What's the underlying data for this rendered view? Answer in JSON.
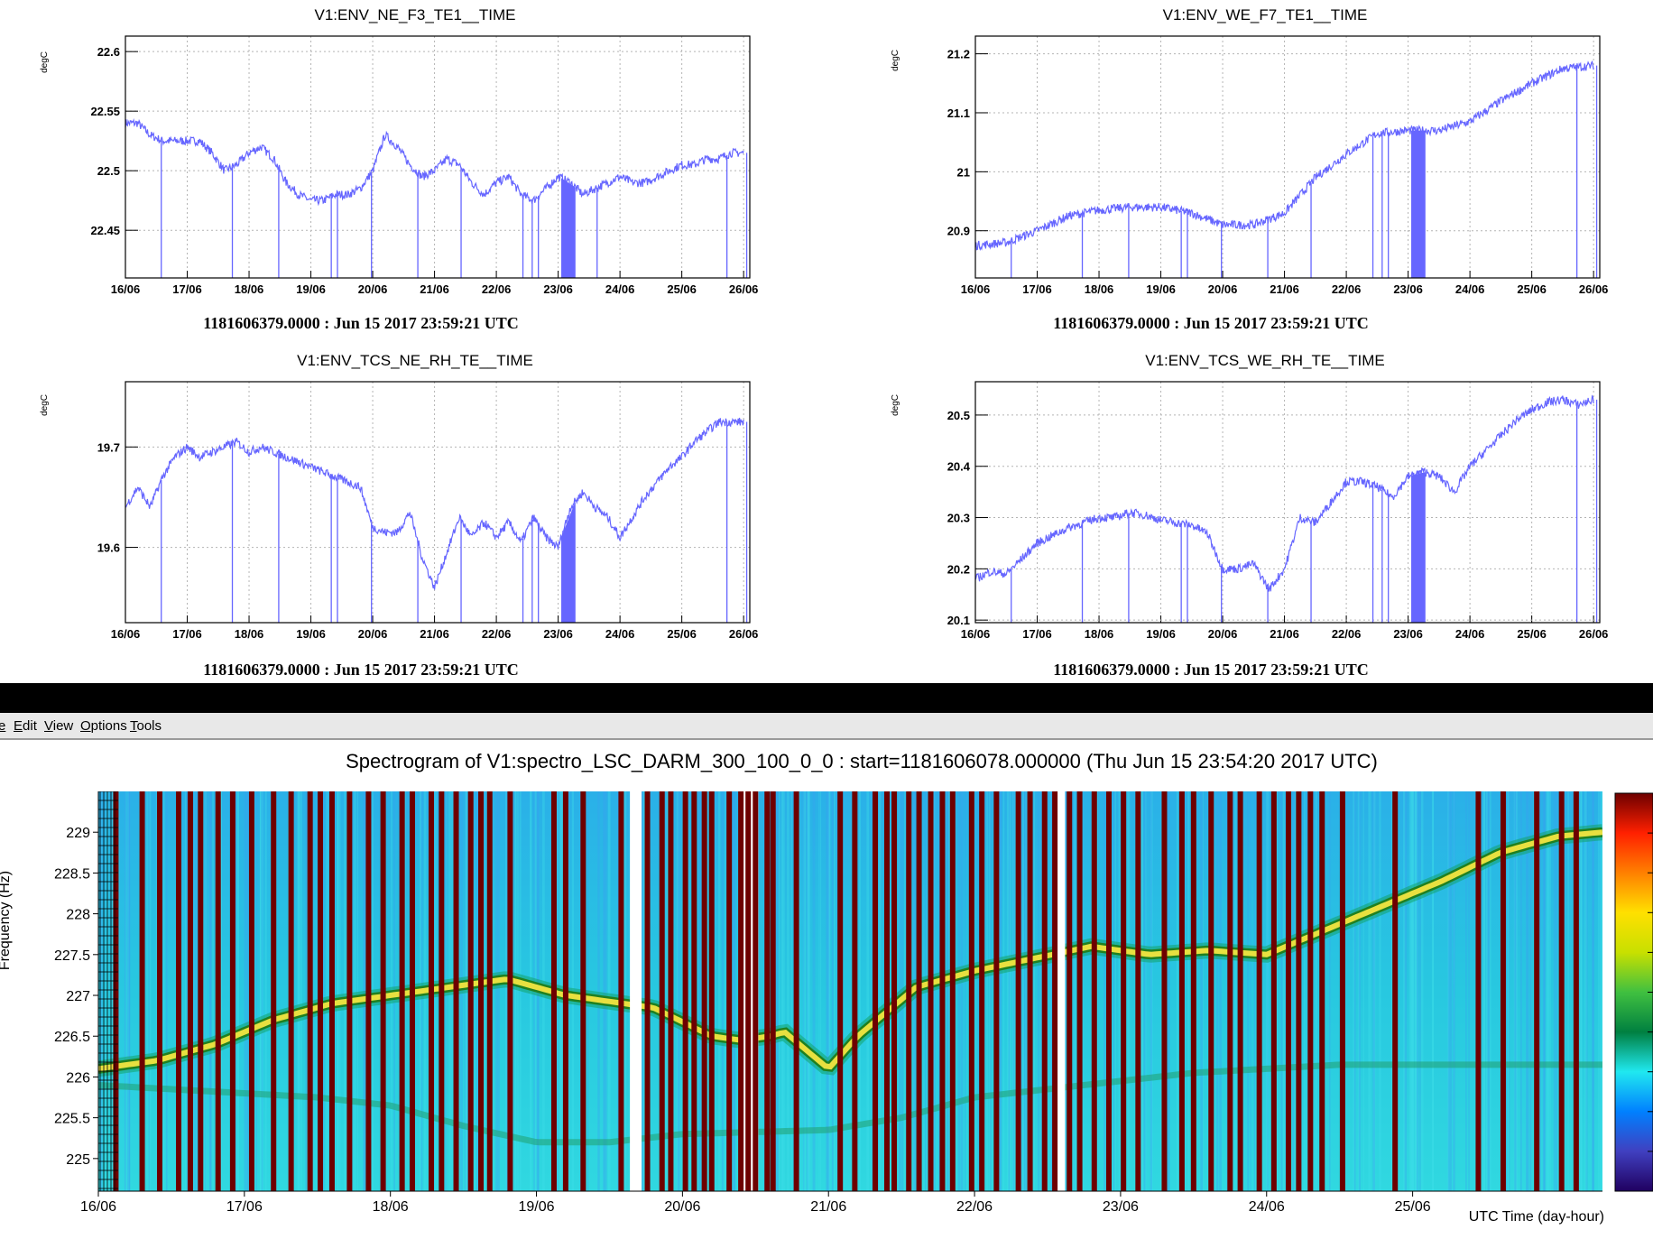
{
  "colors": {
    "trace": "#6666ff",
    "menu_bg": "#e8e8e8",
    "spectro_bg": "#28c8e0",
    "spectro_line": "#e8e040",
    "spectro_gap": "#6e0000"
  },
  "env_plots": [
    {
      "title": "V1:ENV_NE_F3_TE1__TIME",
      "unit": "degC",
      "footer": "1181606379.0000 : Jun 15 2017 23:59:21 UTC",
      "chart_data": {
        "type": "line",
        "title": "V1:ENV_NE_F3_TE1__TIME",
        "ylabel": "degC",
        "x_ticks": [
          "16/06",
          "17/06",
          "18/06",
          "19/06",
          "20/06",
          "21/06",
          "22/06",
          "23/06",
          "24/06",
          "25/06",
          "26/06"
        ],
        "y_ticks": [
          "22.45",
          "22.5",
          "22.55",
          "22.6"
        ],
        "xlim": [
          0,
          10.1
        ],
        "ylim": [
          22.41,
          22.613
        ],
        "series": [
          {
            "x": [
              0,
              0.2,
              0.4,
              0.6,
              0.8,
              1.0,
              1.2,
              1.4,
              1.6,
              1.8,
              2.0,
              2.2,
              2.4,
              2.6,
              2.8,
              3.0,
              3.2,
              3.4,
              3.6,
              3.8,
              4.0,
              4.2,
              4.4,
              4.6,
              4.8,
              5.0,
              5.2,
              5.4,
              5.6,
              5.8,
              6.0,
              6.2,
              6.4,
              6.6,
              6.8,
              7.0,
              7.2,
              7.4,
              7.6,
              7.8,
              8.0,
              8.2,
              8.4,
              8.6,
              8.8,
              9.0,
              9.2,
              9.4,
              9.6,
              9.8,
              10.0
            ],
            "y": [
              22.54,
              22.54,
              22.53,
              22.525,
              22.525,
              22.525,
              22.525,
              22.515,
              22.5,
              22.505,
              22.515,
              22.52,
              22.51,
              22.49,
              22.48,
              22.475,
              22.475,
              22.48,
              22.48,
              22.485,
              22.5,
              22.53,
              22.52,
              22.505,
              22.495,
              22.5,
              22.51,
              22.505,
              22.49,
              22.48,
              22.49,
              22.495,
              22.48,
              22.475,
              22.485,
              22.495,
              22.49,
              22.48,
              22.485,
              22.49,
              22.495,
              22.49,
              22.49,
              22.495,
              22.5,
              22.505,
              22.505,
              22.51,
              22.51,
              22.515,
              22.515
            ]
          }
        ],
        "dropouts": [
          0.58,
          1.73,
          2.48,
          3.33,
          3.43,
          3.98,
          4.73,
          5.43,
          6.43,
          6.58,
          6.68,
          7.63,
          9.73,
          10.05
        ],
        "band": [
          7.05,
          7.28
        ]
      }
    },
    {
      "title": "V1:ENV_WE_F7_TE1__TIME",
      "unit": "degC",
      "footer": "1181606379.0000 : Jun 15 2017 23:59:21 UTC",
      "chart_data": {
        "type": "line",
        "title": "V1:ENV_WE_F7_TE1__TIME",
        "ylabel": "degC",
        "x_ticks": [
          "16/06",
          "17/06",
          "18/06",
          "19/06",
          "20/06",
          "21/06",
          "22/06",
          "23/06",
          "24/06",
          "25/06",
          "26/06"
        ],
        "y_ticks": [
          "20.9",
          "21",
          "21.1",
          "21.2"
        ],
        "xlim": [
          0,
          10.1
        ],
        "ylim": [
          20.82,
          21.23
        ],
        "series": [
          {
            "x": [
              0,
              0.5,
              1.0,
              1.5,
              2.0,
              2.5,
              3.0,
              3.5,
              4.0,
              4.5,
              5.0,
              5.5,
              6.0,
              6.5,
              7.0,
              7.5,
              8.0,
              8.5,
              9.0,
              9.5,
              10.0
            ],
            "y": [
              20.875,
              20.88,
              20.9,
              20.925,
              20.935,
              20.94,
              20.94,
              20.93,
              20.91,
              20.91,
              20.93,
              20.99,
              21.03,
              21.065,
              21.07,
              21.07,
              21.085,
              21.12,
              21.15,
              21.175,
              21.18
            ]
          }
        ],
        "dropouts": [
          0.58,
          1.73,
          2.48,
          3.33,
          3.43,
          3.98,
          4.73,
          5.43,
          6.43,
          6.58,
          6.68,
          9.73,
          10.05
        ],
        "band": [
          7.05,
          7.28
        ]
      }
    },
    {
      "title": "V1:ENV_TCS_NE_RH_TE__TIME",
      "unit": "degC",
      "footer": "1181606379.0000 : Jun 15 2017 23:59:21 UTC",
      "chart_data": {
        "type": "line",
        "title": "V1:ENV_TCS_NE_RH_TE__TIME",
        "ylabel": "degC",
        "x_ticks": [
          "16/06",
          "17/06",
          "18/06",
          "19/06",
          "20/06",
          "21/06",
          "22/06",
          "23/06",
          "24/06",
          "25/06",
          "26/06"
        ],
        "y_ticks": [
          "19.6",
          "19.7"
        ],
        "xlim": [
          0,
          10.1
        ],
        "ylim": [
          19.525,
          19.765
        ],
        "series": [
          {
            "x": [
              0,
              0.2,
              0.4,
              0.6,
              0.8,
              1.0,
              1.2,
              1.4,
              1.6,
              1.8,
              2.0,
              2.2,
              2.4,
              2.6,
              2.8,
              3.0,
              3.2,
              3.4,
              3.6,
              3.8,
              4.0,
              4.2,
              4.4,
              4.6,
              4.8,
              5.0,
              5.2,
              5.4,
              5.6,
              5.8,
              6.0,
              6.2,
              6.4,
              6.6,
              6.8,
              7.0,
              7.2,
              7.4,
              7.6,
              7.8,
              8.0,
              8.2,
              8.4,
              8.6,
              8.8,
              9.0,
              9.2,
              9.4,
              9.6,
              9.8,
              10.0
            ],
            "y": [
              19.64,
              19.66,
              19.64,
              19.67,
              19.69,
              19.7,
              19.69,
              19.695,
              19.7,
              19.705,
              19.695,
              19.7,
              19.695,
              19.69,
              19.685,
              19.68,
              19.675,
              19.67,
              19.665,
              19.66,
              19.62,
              19.615,
              19.615,
              19.635,
              19.59,
              19.56,
              19.595,
              19.63,
              19.61,
              19.625,
              19.61,
              19.625,
              19.605,
              19.63,
              19.61,
              19.6,
              19.64,
              19.655,
              19.64,
              19.63,
              19.61,
              19.63,
              19.65,
              19.665,
              19.68,
              19.69,
              19.705,
              19.715,
              19.725,
              19.725,
              19.725
            ]
          }
        ],
        "dropouts": [
          0.58,
          1.73,
          2.48,
          3.33,
          3.43,
          3.98,
          4.73,
          5.43,
          6.43,
          6.58,
          6.68,
          9.73,
          10.05
        ],
        "band": [
          7.05,
          7.28
        ]
      }
    },
    {
      "title": "V1:ENV_TCS_WE_RH_TE__TIME",
      "unit": "degC",
      "footer": "1181606379.0000 : Jun 15 2017 23:59:21 UTC",
      "chart_data": {
        "type": "line",
        "title": "V1:ENV_TCS_WE_RH_TE__TIME",
        "ylabel": "degC",
        "x_ticks": [
          "16/06",
          "17/06",
          "18/06",
          "19/06",
          "20/06",
          "21/06",
          "22/06",
          "23/06",
          "24/06",
          "25/06",
          "26/06"
        ],
        "y_ticks": [
          "20.1",
          "20.2",
          "20.3",
          "20.4",
          "20.5"
        ],
        "xlim": [
          0,
          10.1
        ],
        "ylim": [
          20.095,
          20.565
        ],
        "series": [
          {
            "x": [
              0,
              0.25,
              0.5,
              0.75,
              1.0,
              1.25,
              1.5,
              1.75,
              2.0,
              2.25,
              2.5,
              2.75,
              3.0,
              3.25,
              3.5,
              3.75,
              4.0,
              4.25,
              4.5,
              4.75,
              5.0,
              5.25,
              5.5,
              5.75,
              6.0,
              6.25,
              6.5,
              6.75,
              7.0,
              7.25,
              7.5,
              7.75,
              8.0,
              8.25,
              8.5,
              8.75,
              9.0,
              9.25,
              9.5,
              9.75,
              10.0
            ],
            "y": [
              20.18,
              20.195,
              20.19,
              20.22,
              20.25,
              20.265,
              20.28,
              20.29,
              20.3,
              20.3,
              20.31,
              20.305,
              20.295,
              20.29,
              20.285,
              20.27,
              20.2,
              20.2,
              20.21,
              20.16,
              20.2,
              20.3,
              20.29,
              20.33,
              20.37,
              20.37,
              20.36,
              20.34,
              20.38,
              20.39,
              20.38,
              20.35,
              20.4,
              20.43,
              20.46,
              20.49,
              20.51,
              20.525,
              20.53,
              20.52,
              20.53
            ]
          }
        ],
        "dropouts": [
          0.58,
          1.73,
          2.48,
          3.33,
          3.43,
          3.98,
          4.73,
          5.43,
          6.43,
          6.58,
          6.68,
          9.73,
          10.05
        ],
        "band": [
          7.05,
          7.28
        ]
      }
    }
  ],
  "menu": [
    "e",
    "Edit",
    "View",
    "Options",
    "Tools"
  ],
  "spectrogram": {
    "title": "Spectrogram of V1:spectro_LSC_DARM_300_100_0_0 : start=1181606078.000000 (Thu Jun 15 23:54:20 2017 UTC)",
    "ylabel": "Frequency (Hz)",
    "xlabel": "UTC Time (day-hour)",
    "chart_data": {
      "type": "heatmap",
      "title": "Spectrogram of V1:spectro_LSC_DARM_300_100_0_0 : start=1181606078.000000 (Thu Jun 15 23:54:20 2017 UTC)",
      "xlabel": "UTC Time (day-hour)",
      "ylabel": "Frequency (Hz)",
      "x_ticks": [
        "16/06",
        "17/06",
        "18/06",
        "19/06",
        "20/06",
        "21/06",
        "22/06",
        "23/06",
        "24/06",
        "25/06"
      ],
      "y_ticks": [
        "225",
        "225.5",
        "226",
        "226.5",
        "227",
        "227.5",
        "228",
        "228.5",
        "229"
      ],
      "xlim": [
        0,
        10.3
      ],
      "ylim": [
        224.6,
        229.5
      ],
      "main_line": {
        "x": [
          0,
          0.4,
          0.8,
          1.2,
          1.6,
          2.0,
          2.4,
          2.8,
          3.2,
          3.6,
          3.8,
          4.2,
          4.4,
          4.6,
          4.7,
          5.0,
          5.2,
          5.6,
          6.0,
          6.4,
          6.8,
          7.2,
          7.6,
          8.0,
          8.4,
          8.8,
          9.2,
          9.6,
          10.0,
          10.3
        ],
        "y": [
          226.1,
          226.2,
          226.4,
          226.7,
          226.9,
          227.0,
          227.1,
          227.2,
          227.0,
          226.9,
          226.85,
          226.5,
          226.45,
          226.5,
          226.55,
          226.1,
          226.5,
          227.1,
          227.3,
          227.45,
          227.6,
          227.5,
          227.55,
          227.5,
          227.8,
          228.1,
          228.4,
          228.75,
          228.95,
          229.0
        ]
      },
      "secondary_line": {
        "x": [
          0,
          0.5,
          1.0,
          1.5,
          2.0,
          2.5,
          3.0,
          3.5,
          4.0,
          5.0,
          5.5,
          6.0,
          6.5,
          7.0,
          7.5,
          8.0,
          8.5,
          9.0,
          9.5,
          10.3
        ],
        "y": [
          225.9,
          225.85,
          225.8,
          225.75,
          225.65,
          225.4,
          225.2,
          225.2,
          225.3,
          225.35,
          225.5,
          225.75,
          225.85,
          225.95,
          226.05,
          226.1,
          226.15,
          226.15,
          226.15,
          226.15
        ]
      },
      "gap_lines": [
        0.12,
        0.3,
        0.42,
        0.55,
        0.63,
        0.7,
        0.82,
        0.92,
        1.05,
        1.2,
        1.32,
        1.45,
        1.52,
        1.6,
        1.72,
        1.85,
        1.95,
        2.08,
        2.15,
        2.28,
        2.35,
        2.45,
        2.55,
        2.62,
        2.68,
        2.82,
        3.12,
        3.2,
        3.32,
        3.58,
        3.76,
        3.86,
        3.92,
        4.02,
        4.08,
        4.15,
        4.2,
        4.32,
        4.4,
        4.45,
        4.5,
        4.58,
        4.62,
        4.78,
        5.08,
        5.18,
        5.32,
        5.4,
        5.45,
        5.55,
        5.62,
        5.7,
        5.78,
        5.85,
        5.98,
        6.05,
        6.15,
        6.3,
        6.38,
        6.48,
        6.55,
        6.65,
        6.72,
        6.82,
        6.92,
        7.02,
        7.12,
        7.3,
        7.42,
        7.5,
        7.62,
        7.75,
        7.82,
        7.95,
        8.05,
        8.15,
        8.22,
        8.3,
        8.38,
        8.52,
        8.88,
        9.45,
        9.62,
        9.85,
        10.02,
        10.12
      ],
      "white_columns": [
        [
          3.64,
          3.72
        ],
        [
          4.39,
          4.52
        ],
        [
          6.55,
          6.62
        ]
      ],
      "colorbar": [
        "#ffffff",
        "#6e0000",
        "#ff2000",
        "#ff8000",
        "#ffe000",
        "#c8e000",
        "#40c040",
        "#008040",
        "#20e8f0",
        "#0080ff",
        "#4040c0",
        "#200060"
      ]
    }
  }
}
